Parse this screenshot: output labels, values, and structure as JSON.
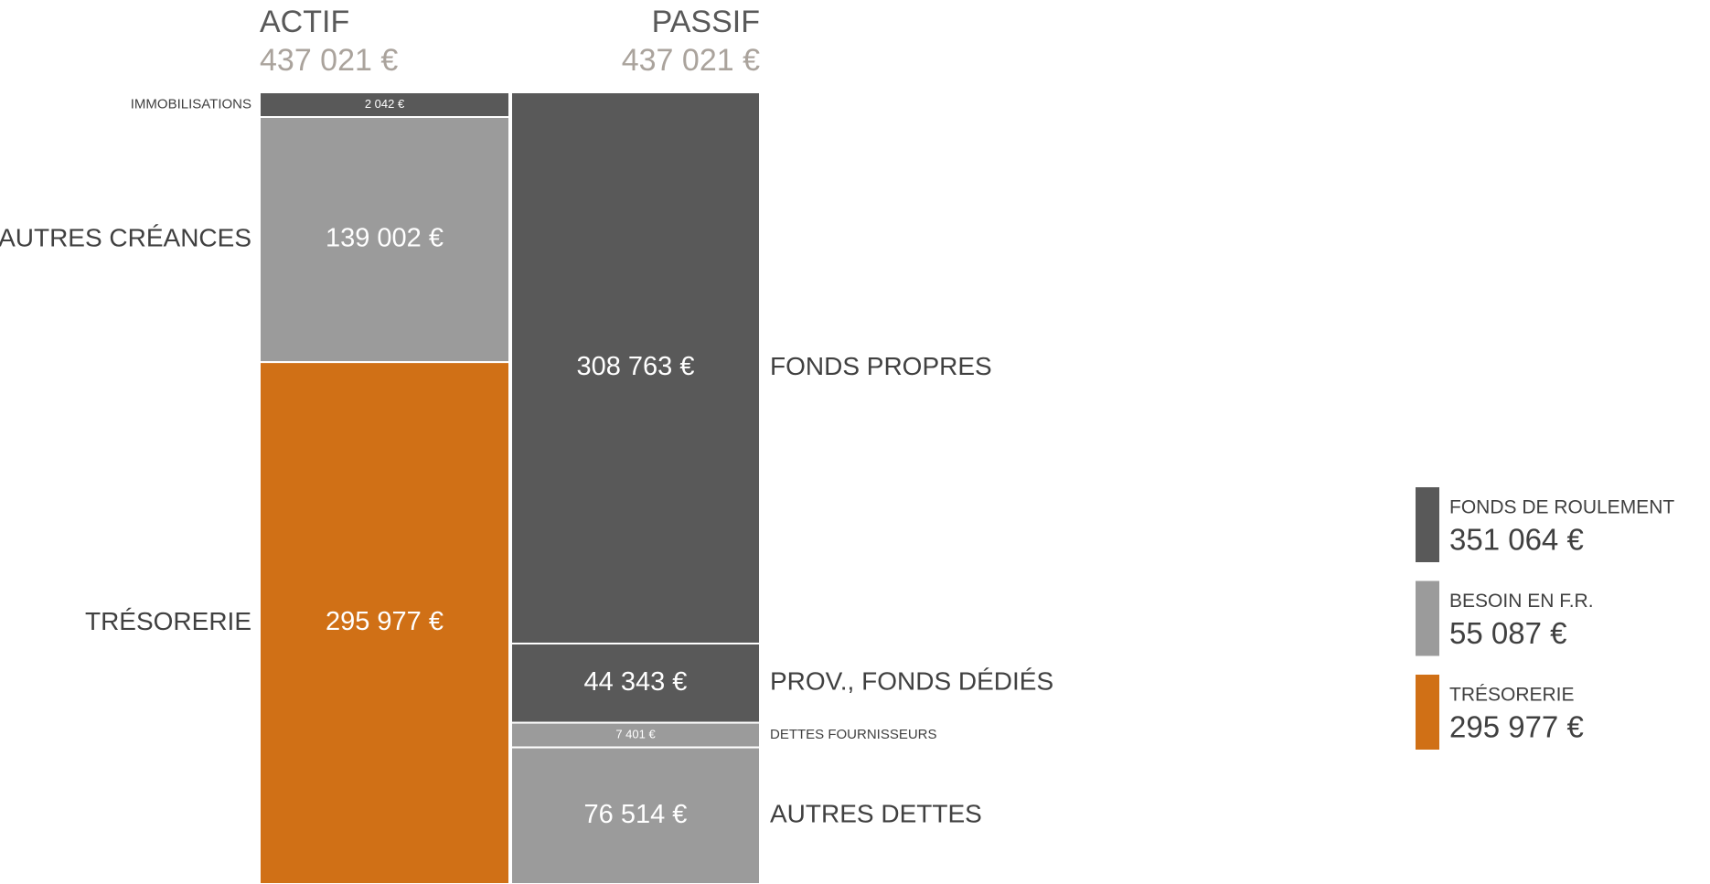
{
  "chart_data": {
    "type": "stacked-bar",
    "categories": [
      "ACTIF",
      "PASSIF"
    ],
    "totals": [
      437021,
      437021
    ],
    "total_labels": [
      "437 021 €",
      "437 021 €"
    ],
    "columns": [
      {
        "names": [
          "IMMOBILISATIONS",
          "AUTRES CRÉANCES",
          "TRÉSORERIE"
        ],
        "values": [
          2042,
          139002,
          295977
        ],
        "value_labels": [
          "2 042 €",
          "139 002 €",
          "295 977 €"
        ],
        "colors": [
          "#595959",
          "#9b9b9b",
          "#d07016"
        ]
      },
      {
        "names": [
          "FONDS PROPRES",
          "PROV., FONDS DÉDIÉS",
          "DETTES FOURNISSEURS",
          "AUTRES DETTES"
        ],
        "values": [
          308763,
          44343,
          7401,
          76514
        ],
        "value_labels": [
          "308 763 €",
          "44 343 €",
          "7 401 €",
          "76 514 €"
        ],
        "colors": [
          "#595959",
          "#595959",
          "#9b9b9b",
          "#9b9b9b"
        ]
      }
    ],
    "legend": [
      {
        "name": "FONDS DE ROULEMENT",
        "value": 351064,
        "value_label": "351 064 €",
        "color": "#595959"
      },
      {
        "name": "BESOIN EN F.R.",
        "value": 55087,
        "value_label": "55 087 €",
        "color": "#9b9b9b"
      },
      {
        "name": "TRÉSORERIE",
        "value": 295977,
        "value_label": "295 977 €",
        "color": "#d07016"
      }
    ]
  }
}
